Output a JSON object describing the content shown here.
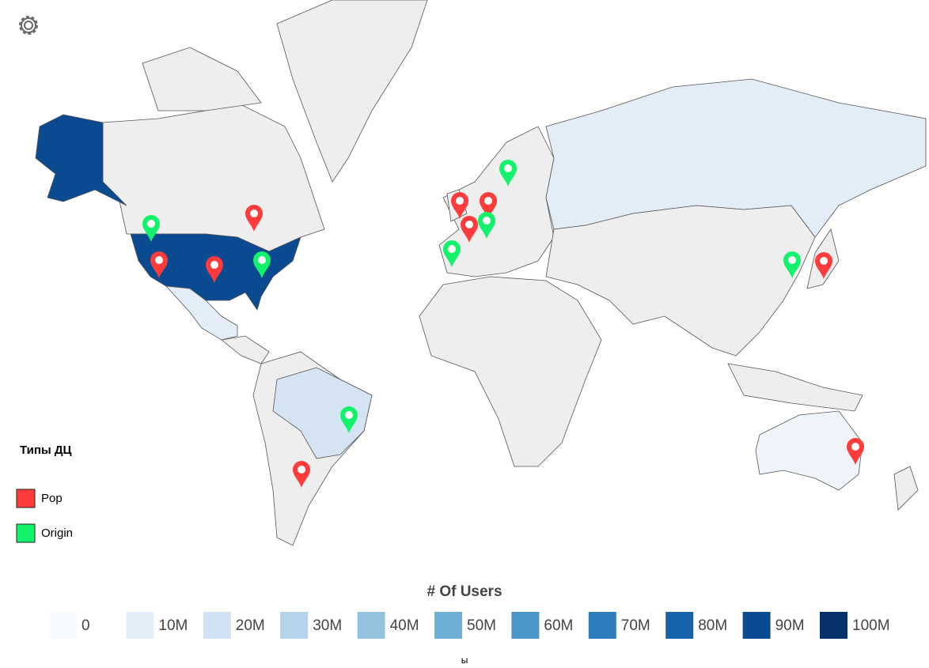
{
  "legend": {
    "title": "Типы ДЦ",
    "items": [
      {
        "label": "Pop",
        "color": "#ff3b3b"
      },
      {
        "label": "Origin",
        "color": "#12f26b"
      }
    ]
  },
  "color_scale": {
    "title": "# Of Users",
    "steps": [
      {
        "value": 0,
        "color": "#f7fbff"
      },
      {
        "value": 10000000,
        "label": "10M",
        "color": "#e3eef9"
      },
      {
        "value": 20000000,
        "label": "20M",
        "color": "#cfe1f2"
      },
      {
        "value": 30000000,
        "label": "30M",
        "color": "#b5d4e9"
      },
      {
        "value": 40000000,
        "label": "40M",
        "color": "#93c3df"
      },
      {
        "value": 50000000,
        "label": "50M",
        "color": "#6daed5"
      },
      {
        "value": 60000000,
        "label": "60M",
        "color": "#4b97c9"
      },
      {
        "value": 70000000,
        "label": "70M",
        "color": "#2f7ebc"
      },
      {
        "value": 80000000,
        "label": "80M",
        "color": "#1864aa"
      },
      {
        "value": 90000000,
        "label": "90M",
        "color": "#0a4a90"
      },
      {
        "value": 100000000,
        "label": "100M",
        "color": "#08306b"
      }
    ]
  },
  "footer": "ы"
}
